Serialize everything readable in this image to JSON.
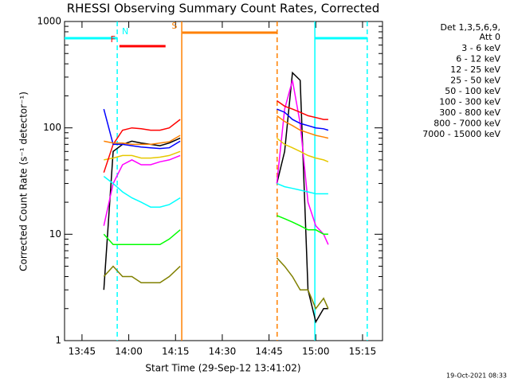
{
  "chart_data": {
    "type": "line",
    "title": "RHESSI Observing Summary Count Rates, Corrected",
    "x_label": "Start Time (29-Sep-12 13:41:02)",
    "y_label": "Corrected Count Rate (s⁻¹ detector⁻¹)",
    "legend_title": [
      "Det 1,3,5,6,9,",
      "Att 0"
    ],
    "footer": "19-Oct-2021 08:33",
    "log_y": true,
    "xlim": [
      819.4,
      921.4
    ],
    "ylim": [
      1,
      1000
    ],
    "xticks": [
      {
        "value": 825,
        "label": "13:45"
      },
      {
        "value": 840,
        "label": "14:00"
      },
      {
        "value": 855,
        "label": "14:15"
      },
      {
        "value": 870,
        "label": "14:30"
      },
      {
        "value": 885,
        "label": "14:45"
      },
      {
        "value": 900,
        "label": "15:00"
      },
      {
        "value": 915,
        "label": "15:15"
      }
    ],
    "yticks": [
      1,
      10,
      100,
      1000
    ],
    "x": [
      832,
      835,
      838,
      841,
      844,
      847,
      850,
      853,
      856.5,
      872,
      887.5,
      890,
      892.5,
      895,
      897.5,
      900,
      902.5,
      904
    ],
    "series": [
      {
        "name": "3 - 6 keV",
        "color": "#000000",
        "values": [
          3,
          60,
          70,
          75,
          72,
          70,
          68,
          72,
          80,
          null,
          30,
          60,
          330,
          280,
          3,
          1.5,
          2,
          2
        ]
      },
      {
        "name": "6 - 12 keV",
        "color": "#ff00ff",
        "values": [
          12,
          30,
          45,
          50,
          45,
          45,
          48,
          50,
          55,
          null,
          30,
          150,
          280,
          110,
          20,
          12,
          10,
          8
        ]
      },
      {
        "name": "12 - 25 keV",
        "color": "#00ff00",
        "values": [
          10,
          8,
          8,
          8,
          8,
          8,
          8,
          9,
          11,
          null,
          15,
          14,
          13,
          12,
          11,
          11,
          10,
          10
        ]
      },
      {
        "name": "25 - 50 keV",
        "color": "#00ffff",
        "values": [
          35,
          30,
          25,
          22,
          20,
          18,
          18,
          19,
          22,
          null,
          30,
          28,
          27,
          26,
          25,
          24,
          24,
          24
        ]
      },
      {
        "name": "50 - 100 keV",
        "color": "#e6c800",
        "values": [
          50,
          52,
          55,
          55,
          52,
          52,
          53,
          55,
          60,
          null,
          80,
          70,
          65,
          60,
          55,
          52,
          50,
          48
        ]
      },
      {
        "name": "100 - 300 keV",
        "color": "#ff0000",
        "values": [
          38,
          70,
          95,
          100,
          98,
          95,
          95,
          100,
          120,
          null,
          180,
          160,
          150,
          140,
          130,
          125,
          120,
          120
        ]
      },
      {
        "name": "300 - 800 keV",
        "color": "#0000ff",
        "values": [
          150,
          70,
          70,
          68,
          66,
          65,
          64,
          65,
          75,
          null,
          150,
          140,
          120,
          110,
          105,
          100,
          98,
          95
        ]
      },
      {
        "name": "800 - 7000 keV",
        "color": "#ff8000",
        "values": [
          75,
          72,
          72,
          70,
          70,
          70,
          72,
          74,
          85,
          null,
          130,
          115,
          105,
          95,
          90,
          85,
          82,
          80
        ]
      },
      {
        "name": "7000 - 15000 keV",
        "color": "#808000",
        "values": [
          4,
          5,
          4,
          4,
          3.5,
          3.5,
          3.5,
          4,
          5,
          null,
          6,
          5,
          4,
          3,
          3,
          2,
          2.5,
          2
        ]
      }
    ],
    "bars": [
      {
        "label": "N",
        "color": "#00ffff",
        "start": 819.4,
        "end": 836.3
      },
      {
        "label": "F",
        "color": "#ff0000",
        "start": 837,
        "end": 851.8
      },
      {
        "label": "S",
        "color": "#ff8000",
        "start": 857.2,
        "end": 887.6
      },
      {
        "color": "#00ffff",
        "start": 899.7,
        "end": 916.5
      }
    ],
    "vlines": [
      {
        "value": 836.3,
        "color": "#00ffff",
        "dashed": true
      },
      {
        "value": 857,
        "color": "#ff8000",
        "dashed": false
      },
      {
        "value": 887.6,
        "color": "#ff8000",
        "dashed": true
      },
      {
        "value": 899.7,
        "color": "#00ffff",
        "dashed": false
      },
      {
        "value": 916.5,
        "color": "#00ffff",
        "dashed": true
      }
    ]
  }
}
